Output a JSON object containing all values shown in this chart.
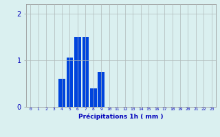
{
  "x_labels": [
    "0",
    "1",
    "2",
    "3",
    "4",
    "5",
    "6",
    "7",
    "8",
    "9",
    "10",
    "11",
    "12",
    "13",
    "14",
    "15",
    "16",
    "17",
    "18",
    "19",
    "20",
    "21",
    "22",
    "23"
  ],
  "values": [
    0,
    0,
    0,
    0,
    0.6,
    1.05,
    1.5,
    1.5,
    0.4,
    0.75,
    0,
    0,
    0,
    0,
    0,
    0,
    0,
    0,
    0,
    0,
    0,
    0,
    0,
    0
  ],
  "bar_color": "#0044dd",
  "background_color": "#daf0f0",
  "grid_color": "#b0b8b8",
  "xlabel": "Précipitations 1h ( mm )",
  "xlabel_color": "#0000bb",
  "tick_color": "#0000bb",
  "ylim": [
    0,
    2.2
  ],
  "yticks": [
    0,
    1,
    2
  ],
  "xlim": [
    -0.5,
    23.5
  ]
}
